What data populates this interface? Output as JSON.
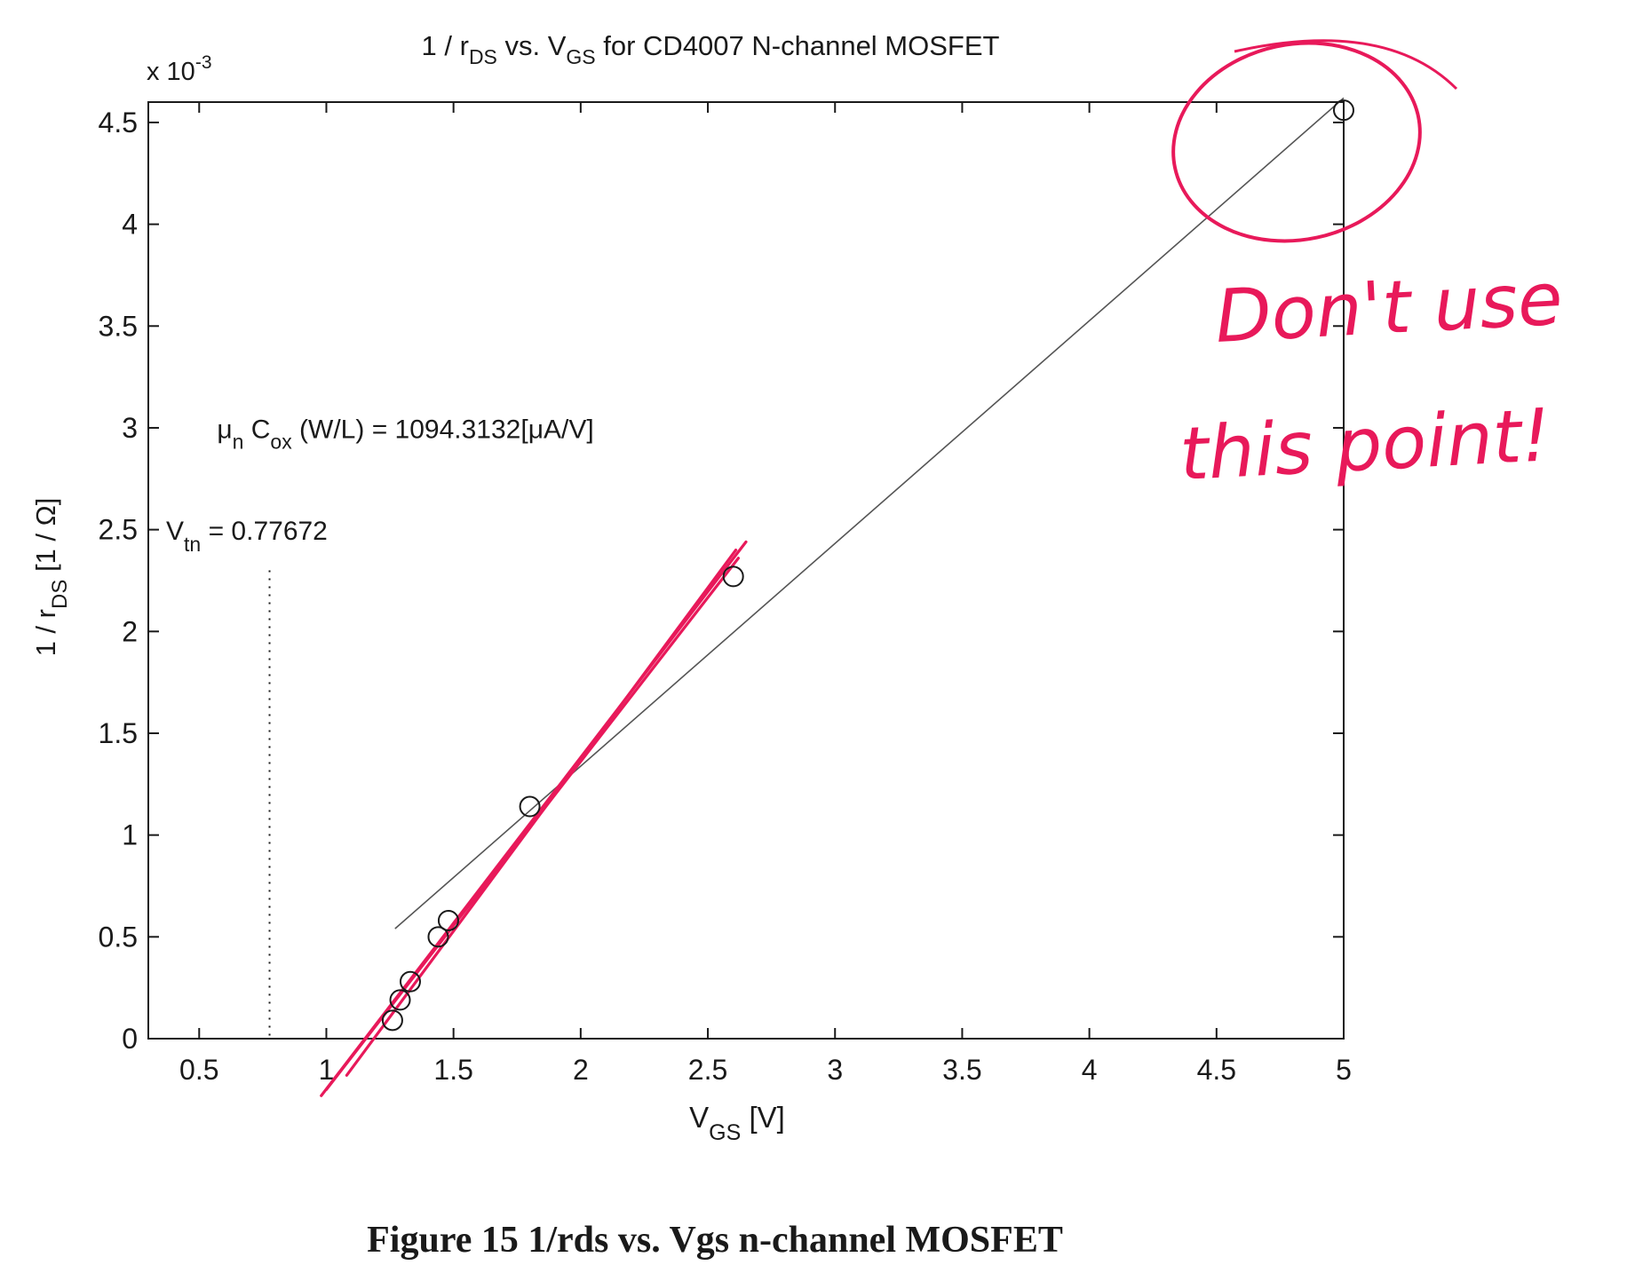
{
  "chart_data": {
    "type": "scatter",
    "title": {
      "pre": "1 / r",
      "sub1": "DS",
      "mid": " vs. V",
      "sub2": "GS",
      "post": " for CD4007 N-channel MOSFET"
    },
    "ylabel": {
      "pre": "1 / r",
      "sub": "DS",
      "post": " [1 / Ω]"
    },
    "xlabel": {
      "pre": "V",
      "sub": "GS",
      "post": " [V]"
    },
    "y_multiplier": {
      "pre": "x 10",
      "sup": "-3"
    },
    "xlim": [
      0.3,
      5.0
    ],
    "ylim": [
      0,
      4.6
    ],
    "xticks": [
      0.5,
      1,
      1.5,
      2,
      2.5,
      3,
      3.5,
      4,
      4.5,
      5
    ],
    "xtick_labels": [
      "0.5",
      "1",
      "1.5",
      "2",
      "2.5",
      "3",
      "3.5",
      "4",
      "4.5",
      "5"
    ],
    "yticks": [
      0,
      0.5,
      1,
      1.5,
      2,
      2.5,
      3,
      3.5,
      4,
      4.5
    ],
    "ytick_labels": [
      "0",
      "0.5",
      "1",
      "1.5",
      "2",
      "2.5",
      "3",
      "3.5",
      "4",
      "4.5"
    ],
    "grid": false,
    "series": [
      {
        "marker": "circle",
        "points": [
          {
            "x": 1.26,
            "y": 0.09
          },
          {
            "x": 1.29,
            "y": 0.19
          },
          {
            "x": 1.33,
            "y": 0.28
          },
          {
            "x": 1.44,
            "y": 0.5
          },
          {
            "x": 1.48,
            "y": 0.58
          },
          {
            "x": 1.8,
            "y": 1.14
          },
          {
            "x": 2.6,
            "y": 2.27
          },
          {
            "x": 5.0,
            "y": 4.56
          }
        ]
      }
    ],
    "fit_line": {
      "x": [
        1.27,
        5.0
      ],
      "y": [
        0.54,
        4.62
      ],
      "color": "#555555"
    },
    "vtn_line": {
      "x": 0.77672,
      "y_top": 2.3
    },
    "annotations": {
      "mu_cox": {
        "pre": "μ",
        "sub1": "n",
        "mid": " C",
        "sub2": "ox",
        "post": " (W/L) = 1094.3132[μA/V]",
        "x": 0.57,
        "y": 2.95
      },
      "vtn": {
        "pre": "V",
        "sub": "tn",
        "post": " = 0.77672",
        "x": 0.37,
        "y": 2.45
      }
    },
    "handwriting": {
      "color": "#e8195a",
      "line1": "Don't use",
      "line2": "this point!",
      "pen_lines": [
        {
          "x": [
            0.98,
            2.65
          ],
          "y": [
            -0.28,
            2.44
          ]
        },
        {
          "x": [
            1.08,
            2.61
          ],
          "y": [
            -0.18,
            2.4
          ]
        },
        {
          "x": [
            1.0,
            2.62
          ],
          "y": [
            -0.25,
            2.36
          ]
        }
      ]
    }
  },
  "caption": "Figure 15 1/rds vs. Vgs n-channel MOSFET"
}
